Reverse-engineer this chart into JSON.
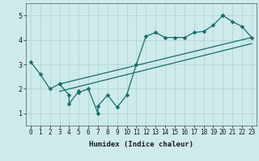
{
  "xlabel": "Humidex (Indice chaleur)",
  "bg_color": "#ceeaea",
  "grid_color": "#b0d8d8",
  "line_color": "#1a6b6b",
  "marker": "D",
  "marker_size": 2.5,
  "ylim": [
    0.5,
    5.5
  ],
  "xlim": [
    -0.5,
    23.5
  ],
  "yticks": [
    1,
    2,
    3,
    4,
    5
  ],
  "xticks": [
    0,
    1,
    2,
    3,
    4,
    5,
    6,
    7,
    8,
    9,
    10,
    11,
    12,
    13,
    14,
    15,
    16,
    17,
    18,
    19,
    20,
    21,
    22,
    23
  ],
  "xtick_labels": [
    "0",
    "1",
    "2",
    "3",
    "4",
    "5",
    "6",
    "7",
    "8",
    "9",
    "10",
    "11",
    "12",
    "13",
    "14",
    "15",
    "16",
    "17",
    "18",
    "19",
    "20",
    "21",
    "22",
    "23"
  ],
  "curve_x": [
    0,
    1,
    2,
    3,
    3,
    4,
    4,
    5,
    5,
    6,
    7,
    7,
    8,
    9,
    10,
    11,
    12,
    13,
    14,
    15,
    16,
    17,
    18,
    19,
    20,
    20,
    21,
    22,
    23
  ],
  "curve_y": [
    3.1,
    2.6,
    2.0,
    2.2,
    2.2,
    1.75,
    1.4,
    1.9,
    1.85,
    2.0,
    1.0,
    1.3,
    1.75,
    1.25,
    1.75,
    3.0,
    4.15,
    4.3,
    4.1,
    4.1,
    4.1,
    4.3,
    4.35,
    4.6,
    5.0,
    5.0,
    4.75,
    4.55,
    4.1
  ],
  "line1_x": [
    3,
    23
  ],
  "line1_y": [
    2.2,
    4.1
  ],
  "line2_x": [
    3,
    23
  ],
  "line2_y": [
    1.9,
    3.85
  ]
}
